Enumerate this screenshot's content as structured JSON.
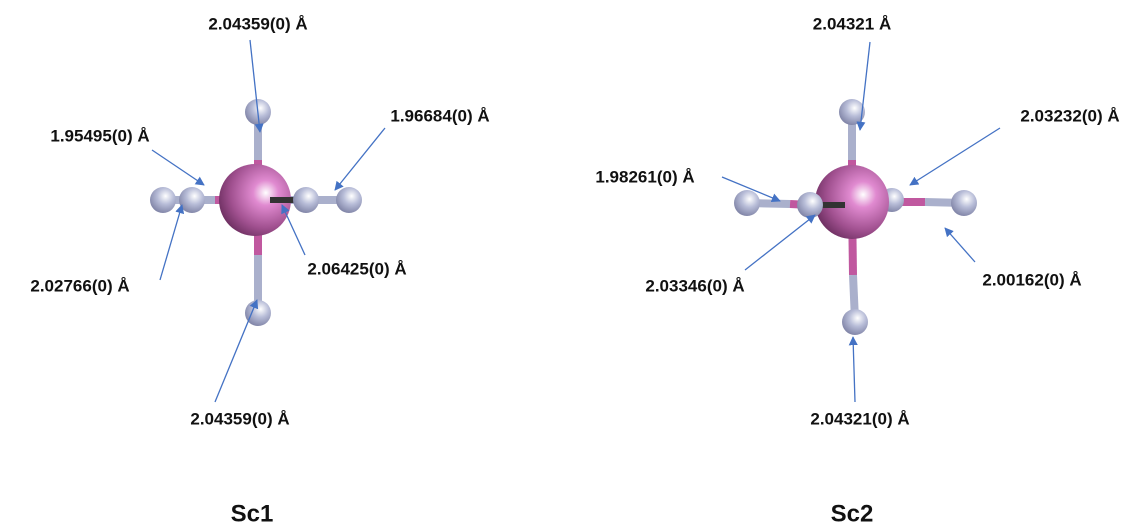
{
  "molecules": [
    {
      "name": "Sc1",
      "labels": [
        "2.04359(0) Å",
        "1.95495(0) Å",
        "1.96684(0) Å",
        "2.02766(0) Å",
        "2.06425(0) Å",
        "2.04359(0) Å"
      ]
    },
    {
      "name": "Sc2",
      "labels": [
        "2.04321 Å",
        "2.03232(0) Å",
        "1.98261(0) Å",
        "2.03346(0) Å",
        "2.00162(0) Å",
        "2.04321(0) Å"
      ]
    }
  ]
}
